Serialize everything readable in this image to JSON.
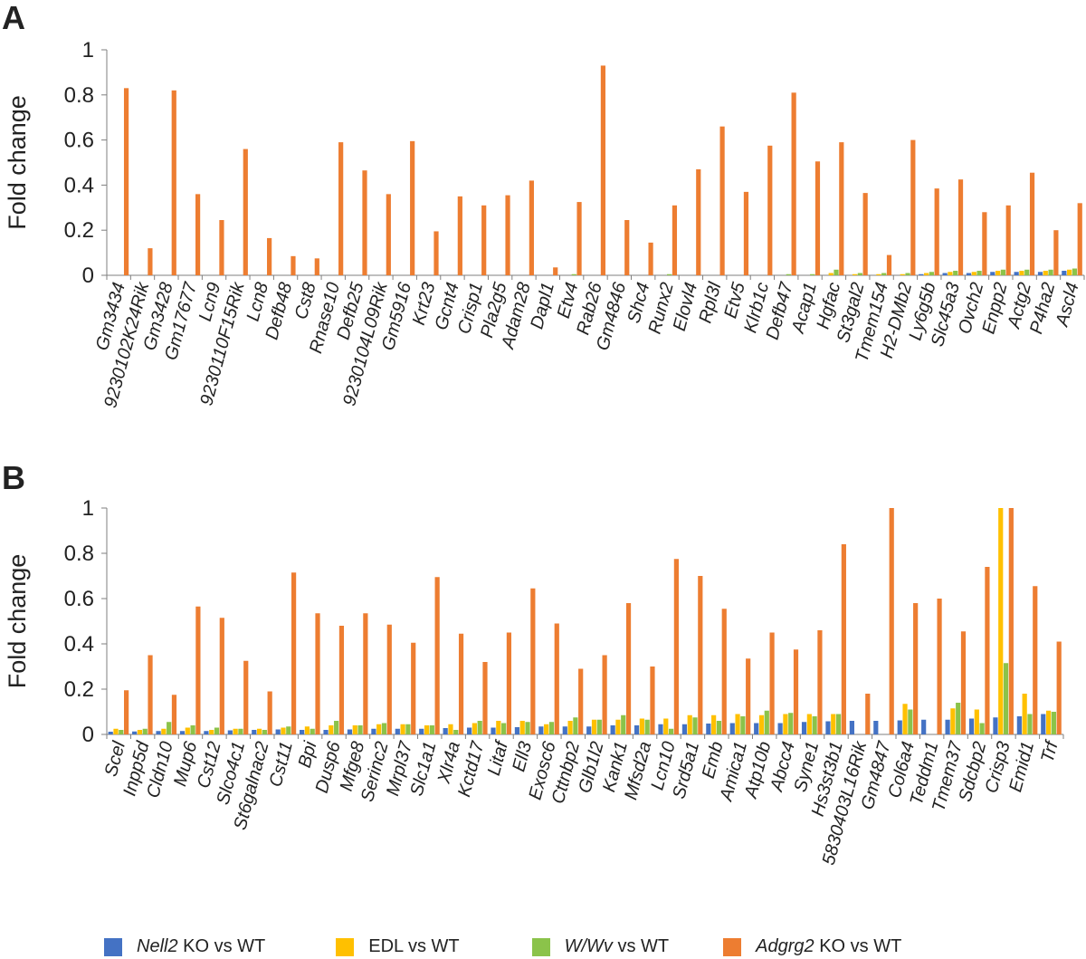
{
  "panels": {
    "a": {
      "label": "A"
    },
    "b": {
      "label": "B"
    }
  },
  "legend": [
    {
      "italic": "Nell2",
      "text": " KO vs WT",
      "color": "#4472C4"
    },
    {
      "italic": "",
      "text": "EDL vs WT",
      "color": "#FFC000"
    },
    {
      "italic": "W/Wv",
      "text": " vs WT",
      "color": "#8BC34A"
    },
    {
      "italic": "Adgrg2",
      "text": " KO vs WT",
      "color": "#ED7D31"
    }
  ],
  "chart_data": [
    {
      "type": "bar",
      "panel": "A",
      "ylabel": "Fold change",
      "ylim": [
        0,
        1
      ],
      "yticks": [
        "0",
        "0.2",
        "0.4",
        "0.6",
        "0.8",
        "1"
      ],
      "grid": false,
      "categories": [
        "Gm3434",
        "9230102K24Rik",
        "Gm3428",
        "Gm17677",
        "Lcn9",
        "9230110F15Rik",
        "Lcn8",
        "Defb48",
        "Cst8",
        "Rnase10",
        "Defb25",
        "9230104L09Rik",
        "Gm5916",
        "Krt23",
        "Gcnt4",
        "Crisp1",
        "Pla2g5",
        "Adam28",
        "Dapl1",
        "Etv4",
        "Rab26",
        "Gm4846",
        "Shc4",
        "Runx2",
        "Elovl4",
        "Rpl3l",
        "Etv5",
        "Klrb1c",
        "Defb47",
        "Acap1",
        "Hgfac",
        "St3gal2",
        "Tmem154",
        "H2-DMb2",
        "Ly6g5b",
        "Slc45a3",
        "Ovch2",
        "Enpp2",
        "Actg2",
        "P4ha2",
        "Ascl4"
      ],
      "series": [
        {
          "name": "Nell2 KO vs WT",
          "color": "#4472C4",
          "values": [
            0,
            0,
            0,
            0,
            0,
            0,
            0,
            0,
            0,
            0,
            0,
            0,
            0,
            0,
            0,
            0,
            0,
            0,
            0,
            0,
            0,
            0,
            0,
            0,
            0,
            0,
            0,
            0,
            0,
            0,
            0,
            0,
            0,
            0,
            0.005,
            0.01,
            0.01,
            0.015,
            0.015,
            0.015,
            0.02
          ]
        },
        {
          "name": "EDL vs WT",
          "color": "#FFC000",
          "values": [
            0,
            0,
            0,
            0,
            0,
            0,
            0,
            0,
            0,
            0,
            0,
            0,
            0,
            0,
            0,
            0,
            0,
            0,
            0,
            0,
            0,
            0,
            0,
            0,
            0,
            0,
            0,
            0,
            0,
            0,
            0.01,
            0.005,
            0.005,
            0.005,
            0.01,
            0.015,
            0.015,
            0.02,
            0.02,
            0.02,
            0.025
          ]
        },
        {
          "name": "W/Wv vs WT",
          "color": "#8BC34A",
          "values": [
            0,
            0,
            0,
            0,
            0,
            0,
            0,
            0,
            0,
            0,
            0,
            0,
            0,
            0,
            0,
            0,
            0,
            0,
            0,
            0.005,
            0,
            0,
            0,
            0.005,
            0,
            0,
            0,
            0,
            0.005,
            0.005,
            0.025,
            0.01,
            0.01,
            0.01,
            0.015,
            0.02,
            0.02,
            0.025,
            0.025,
            0.025,
            0.03
          ]
        },
        {
          "name": "Adgrg2 KO vs WT",
          "color": "#ED7D31",
          "values": [
            0.83,
            0.12,
            0.82,
            0.36,
            0.245,
            0.56,
            0.165,
            0.085,
            0.075,
            0.59,
            0.465,
            0.36,
            0.595,
            0.195,
            0.35,
            0.31,
            0.355,
            0.42,
            0.035,
            0.325,
            0.93,
            0.245,
            0.145,
            0.31,
            0.47,
            0.66,
            0.37,
            0.575,
            0.81,
            0.505,
            0.59,
            0.365,
            0.09,
            0.6,
            0.385,
            0.425,
            0.28,
            0.31,
            0.455,
            0.2,
            0.32
          ]
        }
      ]
    },
    {
      "type": "bar",
      "panel": "B",
      "ylabel": "Fold change",
      "ylim": [
        0,
        1
      ],
      "yticks": [
        "0",
        "0.2",
        "0.4",
        "0.6",
        "0.8",
        "1"
      ],
      "grid": false,
      "categories": [
        "Scel",
        "Inpp5d",
        "Cldn10",
        "Mup6",
        "Cst12",
        "Slco4c1",
        "St6galnac2",
        "Cst11",
        "Bpi",
        "Dusp6",
        "Mfge8",
        "Serinc2",
        "Mrpl37",
        "Slc1a1",
        "Xlr4a",
        "Kctd17",
        "Litaf",
        "Ell3",
        "Exosc6",
        "Cttnbp2",
        "Glb1l2",
        "Kank1",
        "Mfsd2a",
        "Lcn10",
        "Srd5a1",
        "Emb",
        "Amica1",
        "Atp10b",
        "Abcc4",
        "Syne1",
        "Hs3st3b1",
        "5830403L16Rik",
        "Gm4847",
        "Col6a4",
        "Teddm1",
        "Tmem37",
        "Sdcbp2",
        "Crisp3",
        "Emid1",
        "Trf"
      ],
      "series": [
        {
          "name": "Nell2 KO vs WT",
          "color": "#4472C4",
          "values": [
            0.012,
            0.013,
            0.015,
            0.015,
            0.015,
            0.018,
            0.02,
            0.022,
            0.02,
            0.02,
            0.022,
            0.025,
            0.025,
            0.025,
            0.028,
            0.03,
            0.03,
            0.032,
            0.035,
            0.035,
            0.035,
            0.04,
            0.04,
            0.045,
            0.045,
            0.048,
            0.05,
            0.05,
            0.05,
            0.055,
            0.058,
            0.06,
            0.06,
            0.062,
            0.065,
            0.065,
            0.07,
            0.075,
            0.08,
            0.09
          ]
        },
        {
          "name": "EDL vs WT",
          "color": "#FFC000",
          "values": [
            0.025,
            0.02,
            0.025,
            0.03,
            0.02,
            0.025,
            0.025,
            0.03,
            0.035,
            0.04,
            0.04,
            0.045,
            0.045,
            0.04,
            0.045,
            0.05,
            0.06,
            0.06,
            0.045,
            0.06,
            0.065,
            0.065,
            0.07,
            0.07,
            0.085,
            0.085,
            0.09,
            0.085,
            0.09,
            0.09,
            0.09,
            0,
            0,
            0.135,
            0,
            0.115,
            0.11,
            1.0,
            0.18,
            0.105
          ]
        },
        {
          "name": "W/Wv vs WT",
          "color": "#8BC34A",
          "values": [
            0.02,
            0.025,
            0.055,
            0.04,
            0.03,
            0.025,
            0.02,
            0.035,
            0.025,
            0.06,
            0.04,
            0.05,
            0.045,
            0.04,
            0.02,
            0.06,
            0.05,
            0.055,
            0.055,
            0.075,
            0.065,
            0.085,
            0.065,
            0.025,
            0.075,
            0.06,
            0.08,
            0.105,
            0.095,
            0.08,
            0.09,
            0,
            0,
            0.11,
            0,
            0.14,
            0.05,
            0.315,
            0.09,
            0.1
          ]
        },
        {
          "name": "Adgrg2 KO vs WT",
          "color": "#ED7D31",
          "values": [
            0.195,
            0.35,
            0.175,
            0.565,
            0.515,
            0.325,
            0.19,
            0.715,
            0.535,
            0.48,
            0.535,
            0.485,
            0.405,
            0.695,
            0.445,
            0.32,
            0.45,
            0.645,
            0.49,
            0.29,
            0.35,
            0.58,
            0.3,
            0.775,
            0.7,
            0.555,
            0.335,
            0.45,
            0.375,
            0.46,
            0.84,
            0.18,
            1.0,
            0.58,
            0.6,
            0.455,
            0.74,
            1.0,
            0.655,
            0.41
          ]
        }
      ]
    }
  ]
}
